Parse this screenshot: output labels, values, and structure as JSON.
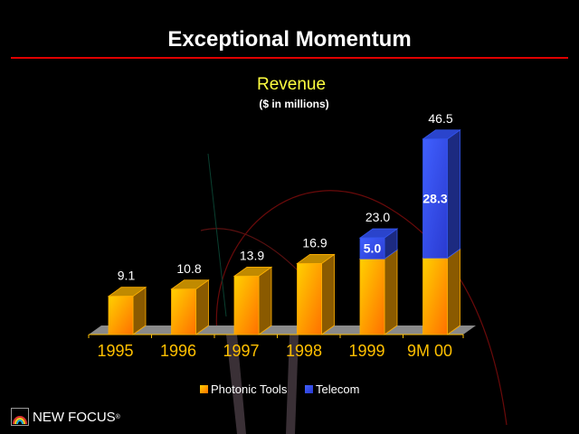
{
  "slide": {
    "title": "Exceptional Momentum",
    "logo_text": "NEW FOCUS",
    "logo_mark": "®"
  },
  "colors": {
    "photonic": "#ffb000",
    "telecom": "#3355ee",
    "rule": "#e00000",
    "title": "#ffffff",
    "chart_title": "#ffff40",
    "axis_labels": "#ffc000"
  },
  "chart_data": {
    "type": "bar",
    "stacked": true,
    "three_d": true,
    "title": "Revenue",
    "subtitle": "($ in millions)",
    "categories": [
      "1995",
      "1996",
      "1997",
      "1998",
      "1999",
      "9M 00"
    ],
    "series": [
      {
        "name": "Photonic Tools",
        "values": [
          9.1,
          10.8,
          13.9,
          16.9,
          18.0,
          18.2
        ]
      },
      {
        "name": "Telecom",
        "values": [
          0,
          0,
          0,
          0,
          5.0,
          28.3
        ]
      }
    ],
    "total_labels": [
      "9.1",
      "10.8",
      "13.9",
      "16.9",
      "23.0",
      "46.5"
    ],
    "segment_labels": [
      {
        "category": "1999",
        "series": "Telecom",
        "label": "5.0"
      },
      {
        "category": "9M 00",
        "series": "Telecom",
        "label": "28.3"
      }
    ],
    "ylim": [
      0,
      50
    ],
    "grid": false,
    "legend": "bottom"
  }
}
